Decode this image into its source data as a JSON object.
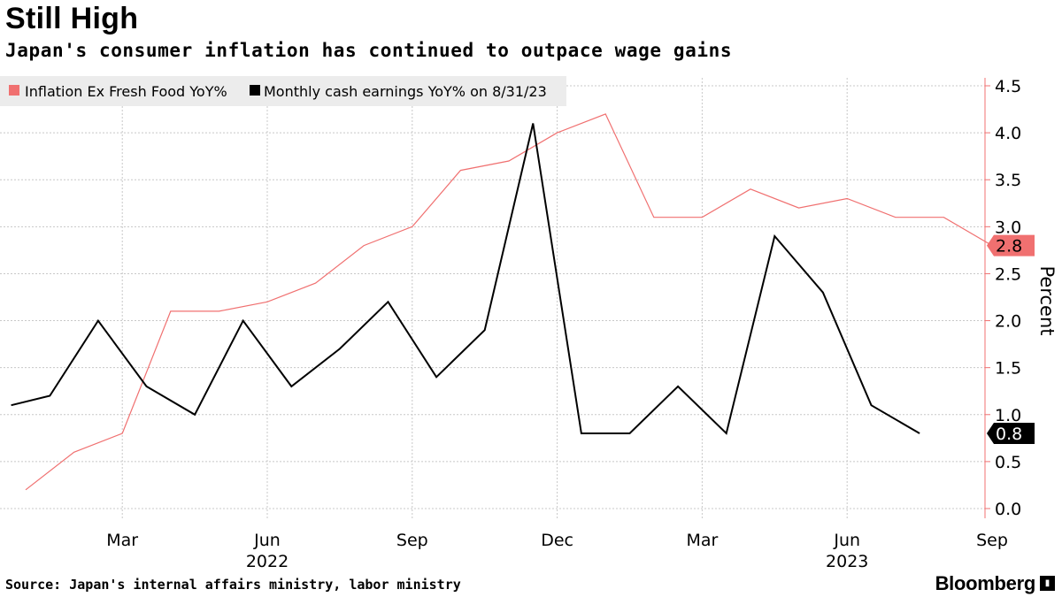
{
  "header": {
    "title": "Still High",
    "subtitle": "Japan's consumer inflation has continued to outpace wage gains"
  },
  "footer": {
    "source": "Source: Japan's internal affairs ministry, labor ministry",
    "brand": "Bloomberg",
    "brand_mark": "▮"
  },
  "colors": {
    "inflation": "#f07070",
    "earnings": "#000000",
    "grid": "#c8c8c8",
    "legend_bg": "#ececec"
  },
  "chart_data": {
    "type": "line",
    "title": "Still High",
    "subtitle": "Japan's consumer inflation has continued to outpace wage gains",
    "ylabel": "Percent",
    "xlabel": "",
    "ylim": [
      0,
      4.5
    ],
    "yticks": [
      "0.0",
      "0.5",
      "1.0",
      "1.5",
      "2.0",
      "2.5",
      "3.0",
      "3.5",
      "4.0",
      "4.5"
    ],
    "ytick_values": [
      0,
      0.5,
      1.0,
      1.5,
      2.0,
      2.5,
      3.0,
      3.5,
      4.0,
      4.5
    ],
    "x_start_month_index": -0.3,
    "x_end_month_index": 19.5,
    "xticks": [
      {
        "label": "Mar",
        "month_index": 2
      },
      {
        "label": "Jun",
        "month_index": 5
      },
      {
        "label": "Sep",
        "month_index": 8
      },
      {
        "label": "Dec",
        "month_index": 11
      },
      {
        "label": "Mar",
        "month_index": 14
      },
      {
        "label": "Jun",
        "month_index": 17
      },
      {
        "label": "Sep",
        "month_index": 20
      }
    ],
    "year_labels": [
      {
        "label": "2022",
        "month_index": 5
      },
      {
        "label": "2023",
        "month_index": 17
      }
    ],
    "legend_position": "top-left",
    "series": [
      {
        "name": "Inflation Ex Fresh Food YoY%",
        "color": "#f07070",
        "x": [
          0,
          1,
          2,
          3,
          4,
          5,
          6,
          7,
          8,
          9,
          10,
          11,
          12,
          13,
          14,
          15,
          16,
          17,
          18,
          19,
          20
        ],
        "values": [
          0.2,
          0.6,
          0.8,
          2.1,
          2.1,
          2.2,
          2.4,
          2.8,
          3.0,
          3.6,
          3.7,
          4.0,
          4.2,
          3.1,
          3.1,
          3.4,
          3.2,
          3.3,
          3.1,
          3.1,
          2.8
        ],
        "last_value_label": "2.8"
      },
      {
        "name": "Monthly cash earnings YoY% on 8/31/23",
        "color": "#000000",
        "x": [
          -0.3,
          0.5,
          1.5,
          2.5,
          3.5,
          4.5,
          5.5,
          6.5,
          7.5,
          8.5,
          9.5,
          10.5,
          11.5,
          12.5,
          13.5,
          14.5,
          15.5,
          16.5,
          17.5,
          18.5
        ],
        "values": [
          1.1,
          1.2,
          2.0,
          1.3,
          1.0,
          2.0,
          1.3,
          1.7,
          2.2,
          1.4,
          1.9,
          4.1,
          0.8,
          0.8,
          1.3,
          0.8,
          2.9,
          2.3,
          1.1,
          0.8
        ],
        "last_value_label": "0.8"
      }
    ]
  }
}
